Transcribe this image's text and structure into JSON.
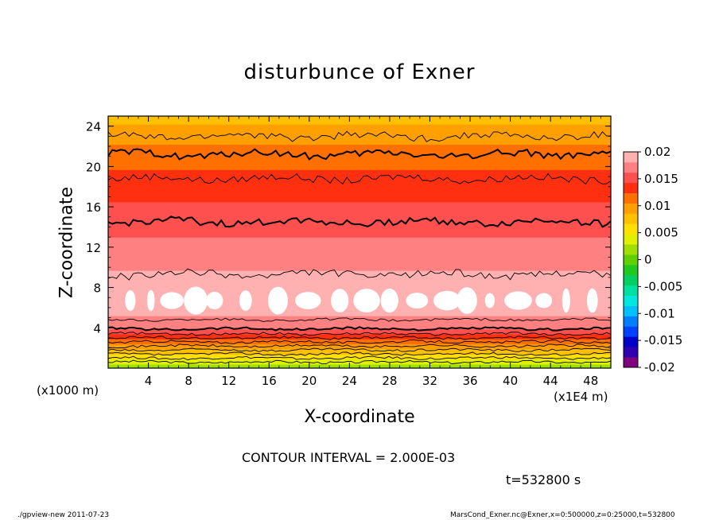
{
  "chart_data": {
    "type": "heatmap",
    "title": "disturbunce of Exner",
    "xlabel": "X-coordinate",
    "ylabel": "Z-coordinate",
    "x_unit_label": "(x1E4 m)",
    "y_unit_label": "(x1000 m)",
    "xlim": [
      0,
      50
    ],
    "ylim": [
      0,
      25
    ],
    "x_ticks": [
      4,
      8,
      12,
      16,
      20,
      24,
      28,
      32,
      36,
      40,
      44,
      48
    ],
    "y_ticks": [
      4,
      8,
      12,
      16,
      20,
      24
    ],
    "colorbar": {
      "levels": [
        -0.02,
        -0.018,
        -0.016,
        -0.014,
        -0.012,
        -0.01,
        -0.008,
        -0.006,
        -0.004,
        -0.002,
        0,
        0.002,
        0.004,
        0.006,
        0.008,
        0.01,
        0.012,
        0.014,
        0.016,
        0.018,
        0.02
      ],
      "tick_labels": [
        "0.02",
        "0.015",
        "0.01",
        "0.005",
        "0",
        "-0.005",
        "-0.01",
        "-0.015",
        "-0.02"
      ],
      "colors": [
        "#800080",
        "#3000b0",
        "#0000c8",
        "#0040ff",
        "#0080ff",
        "#00c0ff",
        "#00e8e0",
        "#00e0a0",
        "#00d060",
        "#20c820",
        "#60d000",
        "#a0e000",
        "#e0f000",
        "#ffe000",
        "#ffc000",
        "#ffa000",
        "#ff7000",
        "#ff3010",
        "#ff5050",
        "#ff8080",
        "#ffb0b0"
      ]
    },
    "profile": {
      "z": [
        0,
        0.5,
        1,
        1.5,
        2,
        2.5,
        3,
        3.5,
        4,
        5,
        6,
        7,
        8,
        9,
        10,
        11,
        12,
        13,
        14,
        15,
        16,
        17,
        18,
        19,
        20,
        21,
        22,
        23,
        24,
        25
      ],
      "value": [
        0.0005,
        0.0025,
        0.0045,
        0.0065,
        0.0085,
        0.0105,
        0.0125,
        0.0145,
        0.0165,
        0.0178,
        0.0191,
        0.0203,
        0.0196,
        0.0185,
        0.0178,
        0.0172,
        0.0166,
        0.016,
        0.0155,
        0.0148,
        0.0142,
        0.0138,
        0.0132,
        0.0125,
        0.0118,
        0.011,
        0.0102,
        0.0092,
        0.0082,
        0.0072
      ]
    },
    "contour_interval_text": "CONTOUR INTERVAL = 2.000E-03",
    "time_text": "t=532800 s"
  },
  "footer": {
    "left": "./gpview-new 2011-07-23",
    "right": "MarsCond_Exner.nc@Exner,x=0:500000,z=0:25000,t=532800"
  }
}
